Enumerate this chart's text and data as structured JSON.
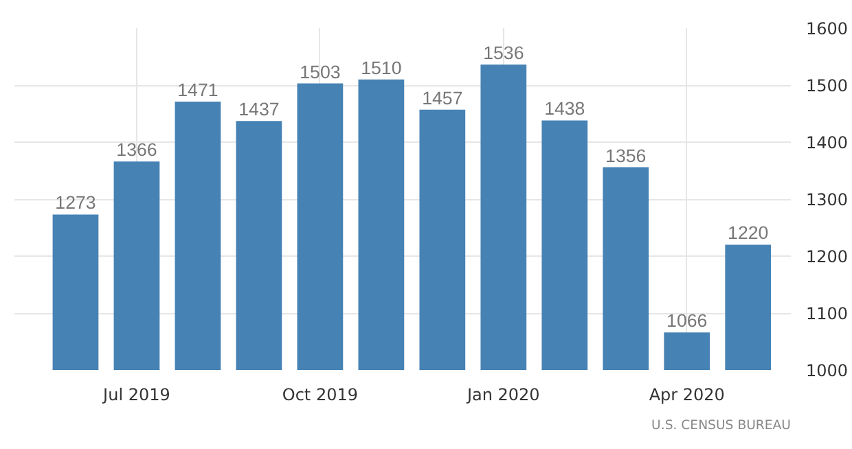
{
  "chart_data": {
    "type": "bar",
    "categories": [
      null,
      "Jul 2019",
      null,
      null,
      "Oct 2019",
      null,
      null,
      "Jan 2020",
      null,
      null,
      "Apr 2020",
      null
    ],
    "values": [
      1273,
      1366,
      1471,
      1437,
      1503,
      1510,
      1457,
      1536,
      1438,
      1356,
      1066,
      1220
    ],
    "color": "#4682b4",
    "ylim": [
      1000,
      1600
    ],
    "yticks": [
      1000,
      1100,
      1200,
      1300,
      1400,
      1500,
      1600
    ],
    "grid": true,
    "data_labels": true,
    "annotations": [
      "U.S. CENSUS BUREAU"
    ]
  }
}
